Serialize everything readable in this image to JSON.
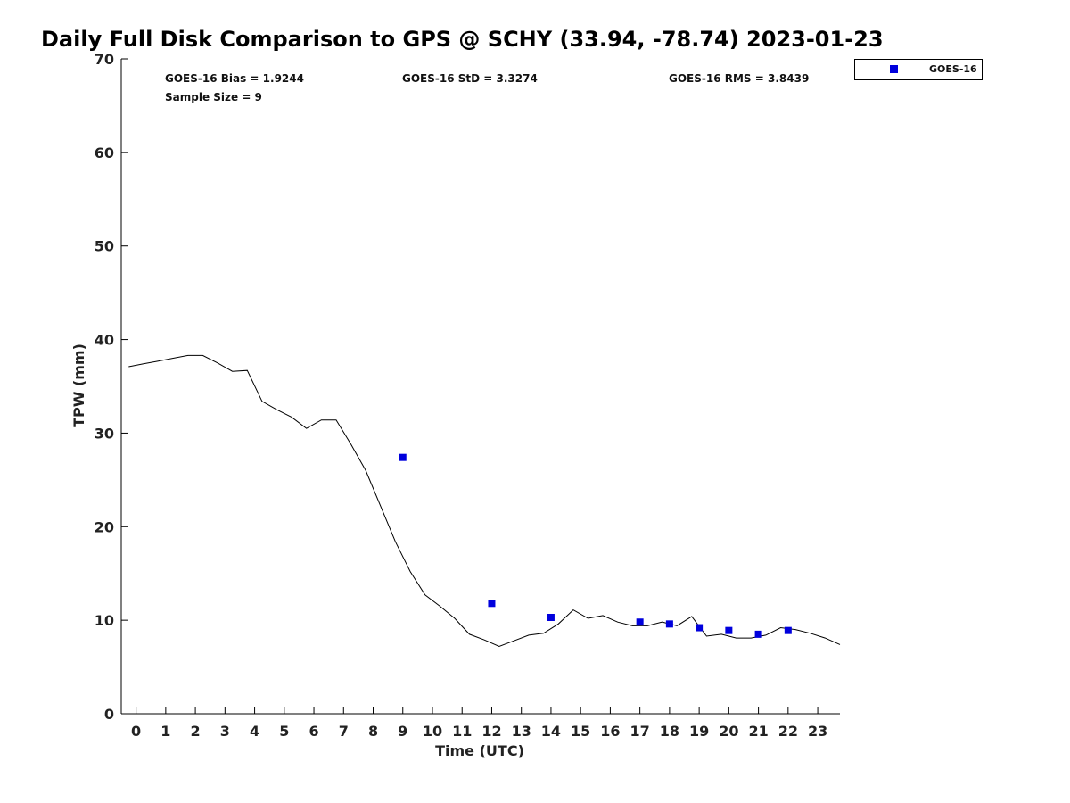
{
  "chart_data": {
    "type": "scatter",
    "title": "Daily Full Disk Comparison to GPS @ SCHY (33.94, -78.74) 2023-01-23",
    "xlabel": "Time (UTC)",
    "ylabel": "TPW (mm)",
    "xlim": [
      -0.5,
      23.75
    ],
    "ylim": [
      0,
      70
    ],
    "x_ticks": [
      0,
      1,
      2,
      3,
      4,
      5,
      6,
      7,
      8,
      9,
      10,
      11,
      12,
      13,
      14,
      15,
      16,
      17,
      18,
      19,
      20,
      21,
      22,
      23
    ],
    "y_ticks": [
      0,
      10,
      20,
      30,
      40,
      50,
      60,
      70
    ],
    "grid": false,
    "legend_position": "top-right",
    "stats": {
      "bias": "GOES-16 Bias = 1.9244",
      "std": "GOES-16 StD = 3.3274",
      "rms": "GOES-16 RMS = 3.8439",
      "sample_size": "Sample Size = 9"
    },
    "series": [
      {
        "type": "line",
        "color": "#000000",
        "x": [
          -0.25,
          0.25,
          0.75,
          1.25,
          1.75,
          2.25,
          2.75,
          3.25,
          3.75,
          4.25,
          4.75,
          5.25,
          5.75,
          6.25,
          6.75,
          7.25,
          7.75,
          8.25,
          8.75,
          9.25,
          9.75,
          10.25,
          10.75,
          11.25,
          11.75,
          12.25,
          12.75,
          13.25,
          13.75,
          14.25,
          14.75,
          15.25,
          15.75,
          16.25,
          16.75,
          17.25,
          17.75,
          18.25,
          18.75,
          19.25,
          19.75,
          20.25,
          20.75,
          21.25,
          21.75,
          22.25,
          22.75,
          23.25,
          23.75
        ],
        "y": [
          37.1,
          37.4,
          37.7,
          38.0,
          38.3,
          38.3,
          37.5,
          36.6,
          36.7,
          33.4,
          32.5,
          31.7,
          30.5,
          31.4,
          31.4,
          28.8,
          26.0,
          22.2,
          18.4,
          15.2,
          12.7,
          11.5,
          10.2,
          8.5,
          7.9,
          7.2,
          7.8,
          8.4,
          8.6,
          9.6,
          11.1,
          10.2,
          10.5,
          9.8,
          9.4,
          9.4,
          9.8,
          9.4,
          10.4,
          8.3,
          8.5,
          8.1,
          8.1,
          8.4,
          9.2,
          9.0,
          8.6,
          8.1,
          7.4
        ]
      },
      {
        "name": "GOES-16",
        "type": "scatter",
        "marker": "square",
        "color": "#0000dd",
        "x": [
          9,
          12,
          14,
          17,
          18,
          19,
          20,
          21,
          22
        ],
        "y": [
          27.4,
          11.8,
          10.3,
          9.8,
          9.6,
          9.2,
          8.9,
          8.5,
          8.9
        ]
      }
    ]
  }
}
